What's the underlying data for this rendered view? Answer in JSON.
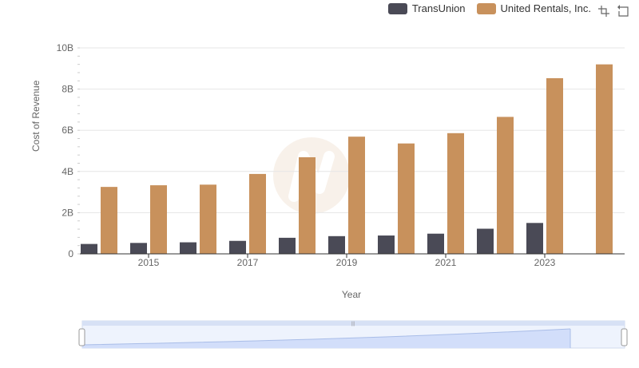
{
  "legend": {
    "items": [
      {
        "label": "TransUnion",
        "color": "#4a4a56"
      },
      {
        "label": "United Rentals, Inc.",
        "color": "#c8915c"
      }
    ]
  },
  "toolbox": {
    "icons": [
      "zoom-icon",
      "restore-icon"
    ]
  },
  "chart_data": {
    "type": "bar",
    "xlabel": "Year",
    "ylabel": "Cost of Revenue",
    "ylim": [
      0,
      10000000000
    ],
    "yticks": [
      "0",
      "2B",
      "4B",
      "6B",
      "8B",
      "10B"
    ],
    "categories": [
      "2014",
      "2015",
      "2016",
      "2017",
      "2018",
      "2019",
      "2020",
      "2021",
      "2022",
      "2023",
      "2024"
    ],
    "xtick_labels": [
      "2015",
      "2017",
      "2019",
      "2021",
      "2023"
    ],
    "grid": true,
    "legend_position": "top-right",
    "series": [
      {
        "name": "TransUnion",
        "color": "#4a4a56",
        "values": [
          480000000,
          530000000,
          560000000,
          630000000,
          780000000,
          860000000,
          890000000,
          980000000,
          1220000000,
          1500000000,
          null
        ]
      },
      {
        "name": "United Rentals, Inc.",
        "color": "#c8915c",
        "values": [
          3250000000,
          3330000000,
          3360000000,
          3880000000,
          4690000000,
          5690000000,
          5360000000,
          5860000000,
          6650000000,
          8530000000,
          9200000000
        ]
      }
    ]
  }
}
